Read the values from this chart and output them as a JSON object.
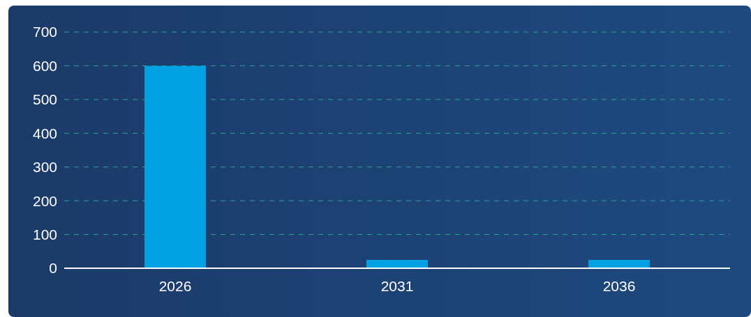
{
  "chart_data": {
    "type": "bar",
    "categories": [
      "2026",
      "2031",
      "2036"
    ],
    "values": [
      600,
      25,
      25
    ],
    "color": "#00a0e3",
    "ylim": [
      0,
      700
    ],
    "yticks": [
      0,
      100,
      200,
      300,
      400,
      500,
      600,
      700
    ],
    "grid": "y"
  }
}
